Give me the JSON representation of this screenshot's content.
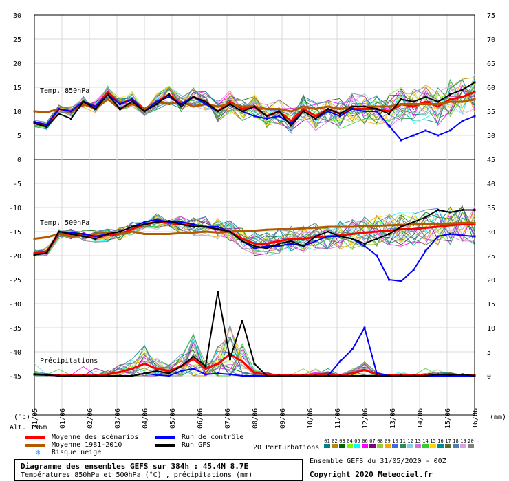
{
  "chart_data": {
    "type": "line",
    "x_tick_labels": [
      "01/06",
      "02/06",
      "03/06",
      "04/06",
      "05/06",
      "06/06",
      "07/06",
      "08/06",
      "09/06",
      "10/06",
      "11/06",
      "12/06",
      "13/06",
      "14/06",
      "15/06",
      "16/06"
    ],
    "x_axis_start_label": "31/05",
    "left_axis": {
      "ticks": [
        30,
        25,
        20,
        15,
        10,
        5,
        0,
        -5,
        -10,
        -15,
        -20,
        -25,
        -30,
        -35,
        -40,
        -45
      ],
      "unit_label": "(°c)"
    },
    "right_axis": {
      "ticks": [
        75,
        70,
        65,
        60,
        55,
        50,
        45,
        40,
        35,
        30,
        25,
        20,
        15,
        10,
        5,
        0
      ],
      "unit_label": "(mm)"
    },
    "panels": [
      {
        "label": "Temp. 850hPa",
        "series": [
          {
            "name": "Moyenne des scénarios",
            "color": "#ff0000",
            "values": [
              7.5,
              7,
              10.5,
              10,
              12,
              11,
              14,
              11.5,
              12.5,
              10.5,
              12,
              13.5,
              11.5,
              13,
              12,
              10,
              12,
              10.5,
              11,
              9,
              10,
              8,
              10.5,
              9,
              10.5,
              9.5,
              10.5,
              10.5,
              10.5,
              10,
              11.5,
              11,
              12,
              11,
              12.5,
              13,
              14
            ]
          },
          {
            "name": "Moyenne 1981-2010",
            "color": "#b35a00",
            "values": [
              10,
              9.8,
              10.5,
              9.7,
              11.5,
              10.5,
              12.5,
              10.5,
              11.5,
              10.5,
              12,
              11.5,
              12,
              11,
              11.5,
              11,
              11.5,
              11,
              11,
              10.5,
              10.5,
              10,
              11,
              10.5,
              11,
              10.5,
              11,
              11,
              11,
              11,
              11.5,
              11.5,
              11.5,
              11.5,
              12,
              12,
              12.5
            ]
          },
          {
            "name": "Run de contrôle",
            "color": "#0000ff",
            "values": [
              7.8,
              7.2,
              10.5,
              10,
              12,
              11,
              13.5,
              11.5,
              12.5,
              10,
              12,
              13,
              11.5,
              13,
              11.5,
              10,
              11.5,
              10,
              9,
              8.5,
              9,
              7.5,
              10,
              8.5,
              10,
              9,
              10.5,
              10,
              10,
              7,
              4,
              5,
              6,
              5,
              6,
              8,
              9
            ]
          },
          {
            "name": "Run GFS",
            "color": "#000000",
            "values": [
              7.5,
              6.8,
              9.5,
              8.5,
              12,
              10.5,
              13.5,
              10.5,
              12,
              10,
              11.5,
              13.5,
              11,
              13,
              12,
              10,
              11.5,
              10,
              11,
              9,
              10,
              7,
              10,
              8.5,
              10.5,
              9.5,
              11,
              11,
              10.5,
              9.5,
              12.5,
              12,
              13,
              12,
              13.5,
              14.5,
              16
            ]
          }
        ]
      },
      {
        "label": "Temp. 500hPa",
        "series": [
          {
            "name": "Moyenne des scénarios",
            "color": "#ff0000",
            "values": [
              -19.5,
              -19.2,
              -15.5,
              -15.5,
              -15.8,
              -16,
              -15.8,
              -15.5,
              -14.5,
              -13.5,
              -13,
              -13.2,
              -13.5,
              -13.8,
              -14,
              -14.5,
              -15,
              -16.5,
              -17.5,
              -17.5,
              -17,
              -16.5,
              -16.5,
              -16.2,
              -16,
              -15.8,
              -15.5,
              -15.2,
              -15,
              -14.8,
              -14.5,
              -14.5,
              -14.2,
              -14,
              -13.7,
              -13.5,
              -13.5
            ]
          },
          {
            "name": "Moyenne 1981-2010",
            "color": "#b35a00",
            "values": [
              -16.5,
              -16.2,
              -15.5,
              -16,
              -15.8,
              -15.5,
              -15.2,
              -15.5,
              -15,
              -15.5,
              -15.5,
              -15.5,
              -15.3,
              -15.2,
              -15,
              -15.2,
              -15,
              -14.8,
              -14.8,
              -14.6,
              -14.5,
              -14.5,
              -14.3,
              -14.2,
              -14,
              -14,
              -14,
              -13.8,
              -13.8,
              -13.7,
              -13.6,
              -13.5,
              -13.5,
              -13.4,
              -13.3,
              -13.2,
              -13.2
            ]
          },
          {
            "name": "Run de contrôle",
            "color": "#0000ff",
            "values": [
              -19.8,
              -19.5,
              -15,
              -15.2,
              -15.5,
              -16,
              -15.5,
              -15,
              -14,
              -13,
              -12.5,
              -13,
              -13,
              -13.5,
              -14,
              -14,
              -15,
              -17,
              -18.5,
              -18,
              -18,
              -17.5,
              -18,
              -17,
              -16,
              -16,
              -16.5,
              -18,
              -20,
              -25,
              -25.3,
              -23,
              -19,
              -16,
              -15.5,
              -15.8,
              -16
            ]
          },
          {
            "name": "Run GFS",
            "color": "#000000",
            "values": [
              -19.8,
              -19.5,
              -15,
              -15.5,
              -16,
              -16.5,
              -15.5,
              -15,
              -14,
              -13.5,
              -13,
              -12.8,
              -13.5,
              -14,
              -14,
              -14.5,
              -15,
              -17,
              -18,
              -18.5,
              -17.5,
              -17,
              -18,
              -16,
              -15,
              -16,
              -16.5,
              -17.5,
              -16.5,
              -15.5,
              -14,
              -13,
              -12,
              -10.5,
              -11,
              -10.5,
              -10.5
            ]
          }
        ]
      },
      {
        "label": "Précipitations",
        "series": [
          {
            "name": "Moyenne des scénarios",
            "color": "#ff0000",
            "values": [
              0.3,
              0.2,
              0.1,
              0.1,
              0.1,
              0.1,
              0.3,
              0.8,
              1.5,
              2.5,
              1.5,
              1,
              2,
              3.5,
              1.5,
              2.5,
              4.5,
              3,
              0.6,
              0.3,
              0.1,
              0.1,
              0.1,
              0.3,
              0.4,
              0.1,
              0.5,
              1.2,
              0.3,
              0.1,
              0.2,
              0.1,
              0.2,
              0.3,
              0.3,
              0.1,
              0.1
            ]
          },
          {
            "name": "Run de contrôle",
            "color": "#0000ff",
            "values": [
              0.3,
              0.2,
              0,
              0,
              0,
              0,
              0,
              0,
              0,
              0.5,
              0.2,
              0,
              1,
              1.5,
              0.3,
              0.5,
              0.3,
              0,
              0,
              0,
              0,
              0,
              0,
              0,
              0,
              3,
              5.5,
              10,
              0.5,
              0,
              0,
              0,
              0,
              0,
              0,
              0,
              0
            ]
          },
          {
            "name": "Run GFS",
            "color": "#000000",
            "values": [
              0.3,
              0.2,
              0,
              0,
              0,
              0,
              0,
              0,
              0,
              0.5,
              1,
              0.5,
              2,
              4,
              2,
              17.5,
              3.5,
              11.5,
              2.5,
              0,
              0,
              0,
              0,
              0,
              0,
              0,
              0,
              0,
              0,
              0,
              0,
              0,
              0,
              0.3,
              0.2,
              0.3,
              0
            ]
          }
        ]
      }
    ],
    "legend": {
      "moyenne_scenarios": "Moyenne des scénarios",
      "moyenne_clim": "Moyenne 1981-2010",
      "risque_neige": "Risque neige",
      "run_controle": "Run de contrôle",
      "run_gfs": "Run GFS",
      "perturbations": "20 Perturbations",
      "pert_numbers": [
        "01",
        "02",
        "03",
        "04",
        "05",
        "06",
        "07",
        "08",
        "09",
        "10",
        "11",
        "12",
        "13",
        "14",
        "15",
        "16",
        "17",
        "18",
        "19",
        "20"
      ],
      "pert_colors": [
        "#008080",
        "#b8860b",
        "#006400",
        "#7cfc00",
        "#00ffff",
        "#ff00ff",
        "#800080",
        "#9acd32",
        "#ffa500",
        "#4169e1",
        "#2e8b57",
        "#87ceeb",
        "#da70d6",
        "#32cd32",
        "#ffd700",
        "#008b8b",
        "#556b2f",
        "#4682b4",
        "#dda0dd",
        "#808080"
      ]
    },
    "altitude": "Alt. 196m"
  },
  "footer": {
    "title": "Diagramme des ensembles GEFS sur 384h : 45.4N 8.7E",
    "subtitle": "Températures 850hPa et 500hPa (°C) , précipitations (mm)",
    "run_info": "Ensemble GEFS du 31/05/2020 - 00Z",
    "copyright": "Copyright 2020 Meteociel.fr"
  }
}
